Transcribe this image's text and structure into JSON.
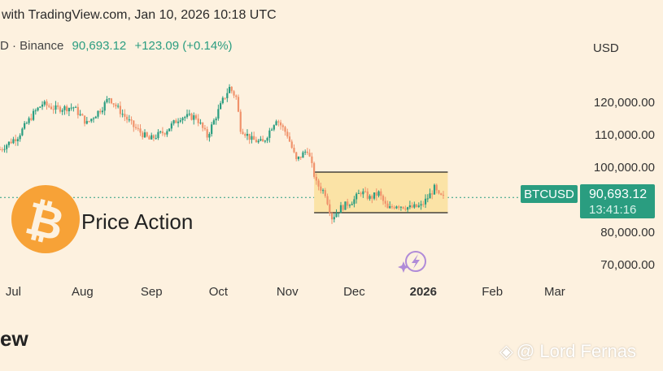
{
  "header": {
    "caption": "with TradingView.com, Jan 10, 2026 10:18 UTC",
    "exchange_text": "D · Binance",
    "last_price": "90,693.12",
    "change": "+123.09 (+0.14%)",
    "currency": "USD"
  },
  "bottom_fragment": "ew",
  "watermark": "@ Lord Fernas",
  "annotation": "Price Action",
  "price_tag": {
    "symbol": "BTCUSD",
    "price": "90,693.12",
    "countdown": "13:41:16"
  },
  "colors": {
    "up": "#2a9d80",
    "down": "#f0926b",
    "background": "#fdf1df",
    "box_fill": "#fbe3a6",
    "logo": "#f7a237",
    "tag": "#2a9d80"
  },
  "icons": {
    "logo": "bitcoin-logo-icon",
    "flash": "lightning-sparkle-icon",
    "watermark": "binance-diamond-icon"
  },
  "chart_data": {
    "type": "candlestick",
    "x_ticks": [
      "Jul",
      "Aug",
      "Sep",
      "Oct",
      "Nov",
      "Dec",
      "2026",
      "Feb",
      "Mar"
    ],
    "y_ticks": [
      "120,000.00",
      "110,000.00",
      "100,000.00",
      "80,000.00",
      "70,000.00"
    ],
    "y_tick_values": [
      120000,
      110000,
      100000,
      80000,
      70000
    ],
    "ylim": [
      66000,
      132000
    ],
    "date_range": [
      "2025-06-25",
      "2026-03-12"
    ],
    "last_value": 90693.12,
    "current_price_line": 90693.12,
    "range_box": {
      "start": "2025-11-13",
      "end": "2026-01-12",
      "top": 98500,
      "bottom": 86000
    },
    "anchors": [
      [
        "2025-06-25",
        105500
      ],
      [
        "2025-07-03",
        109500
      ],
      [
        "2025-07-10",
        116500
      ],
      [
        "2025-07-14",
        119500
      ],
      [
        "2025-07-20",
        118000
      ],
      [
        "2025-07-28",
        118500
      ],
      [
        "2025-08-03",
        113500
      ],
      [
        "2025-08-10",
        118500
      ],
      [
        "2025-08-13",
        121500
      ],
      [
        "2025-08-17",
        118000
      ],
      [
        "2025-08-24",
        112500
      ],
      [
        "2025-08-31",
        108500
      ],
      [
        "2025-09-07",
        111000
      ],
      [
        "2025-09-14",
        115500
      ],
      [
        "2025-09-21",
        115500
      ],
      [
        "2025-09-26",
        109500
      ],
      [
        "2025-10-03",
        120500
      ],
      [
        "2025-10-06",
        124500
      ],
      [
        "2025-10-09",
        121500
      ],
      [
        "2025-10-11",
        112000
      ],
      [
        "2025-10-16",
        108500
      ],
      [
        "2025-10-21",
        107500
      ],
      [
        "2025-10-27",
        115000
      ],
      [
        "2025-11-01",
        110000
      ],
      [
        "2025-11-05",
        102000
      ],
      [
        "2025-11-10",
        105500
      ],
      [
        "2025-11-14",
        95000
      ],
      [
        "2025-11-18",
        92000
      ],
      [
        "2025-11-21",
        84500
      ],
      [
        "2025-11-25",
        87500
      ],
      [
        "2025-12-01",
        90000
      ],
      [
        "2025-12-04",
        92500
      ],
      [
        "2025-12-08",
        90500
      ],
      [
        "2025-12-12",
        92000
      ],
      [
        "2025-12-16",
        87000
      ],
      [
        "2025-12-20",
        88500
      ],
      [
        "2025-12-26",
        87500
      ],
      [
        "2025-12-31",
        88000
      ],
      [
        "2026-01-04",
        91500
      ],
      [
        "2026-01-06",
        93500
      ],
      [
        "2026-01-08",
        91000
      ],
      [
        "2026-01-10",
        90700
      ]
    ]
  }
}
